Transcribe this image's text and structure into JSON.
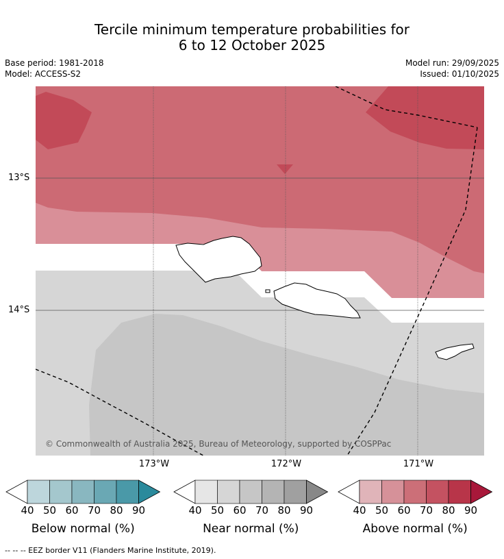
{
  "title": {
    "line1": "Tercile minimum temperature probabilities for",
    "line2": "6 to 12 October 2025"
  },
  "meta": {
    "base_period": "Base period: 1981-2018",
    "model": "Model: ACCESS-S2",
    "model_run": "Model run: 29/09/2025",
    "issued": "Issued: 01/10/2025"
  },
  "map": {
    "lat_labels": [
      "13°S",
      "14°S"
    ],
    "lon_labels": [
      "173°W",
      "172°W",
      "171°W"
    ],
    "copyright": "© Commonwealth of Australia 2025, Bureau of Meteorology, supported by COSPPac",
    "colors": {
      "above_50": "#d98f98",
      "above_60": "#cc6a74",
      "above_70": "#c24a58",
      "near_40": "#e6e6e6",
      "near_50": "#d6d6d6",
      "near_60": "#c6c6c6",
      "blank": "#ffffff"
    }
  },
  "colorbars": [
    {
      "label": "Below normal (%)",
      "ticks": [
        "40",
        "50",
        "60",
        "70",
        "80",
        "90"
      ],
      "colors": [
        "#ffffff",
        "#bdd6dc",
        "#a4c7cd",
        "#89b7c0",
        "#6aa8b4",
        "#4a99a8",
        "#2a8a9c"
      ]
    },
    {
      "label": "Near normal (%)",
      "ticks": [
        "40",
        "50",
        "60",
        "70",
        "80",
        "90"
      ],
      "colors": [
        "#ffffff",
        "#e6e6e6",
        "#d6d6d6",
        "#c6c6c6",
        "#b4b4b4",
        "#a0a0a0",
        "#888888"
      ]
    },
    {
      "label": "Above normal (%)",
      "ticks": [
        "40",
        "50",
        "60",
        "70",
        "80",
        "90"
      ],
      "colors": [
        "#ffffff",
        "#e0b4b9",
        "#d69199",
        "#cc6f78",
        "#c45261",
        "#b83549",
        "#a8183a"
      ]
    }
  ],
  "footer": "--  --  -- EEZ border V11 (Flanders Marine Institute, 2019)."
}
